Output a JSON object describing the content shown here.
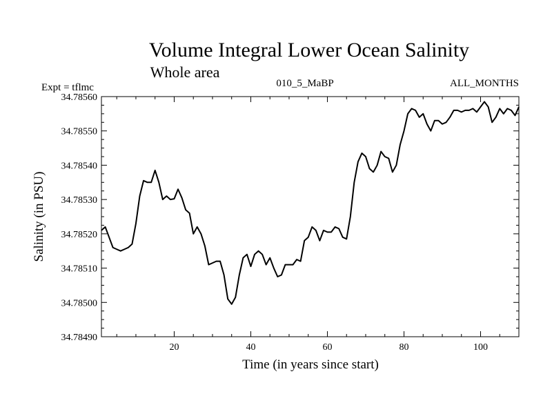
{
  "chart_data": {
    "type": "line",
    "title": "Volume Integral Lower Ocean Salinity",
    "subtitle": "Whole area",
    "left_note": "Expt = tflmc",
    "center_note": "010_5_MaBP",
    "right_note": "ALL_MONTHS",
    "xlabel": "Time (in years since start)",
    "ylabel": "Salinity (in PSU)",
    "xlim": [
      1,
      110
    ],
    "ylim": [
      34.7849,
      34.7856
    ],
    "x_ticks": [
      20,
      40,
      60,
      80,
      100
    ],
    "y_ticks": [
      34.7849,
      34.785,
      34.7851,
      34.7852,
      34.7853,
      34.7854,
      34.7855,
      34.7856
    ],
    "y_tick_labels": [
      "34.78490",
      "34.78500",
      "34.78510",
      "34.78520",
      "34.78530",
      "34.78540",
      "34.78550",
      "34.78560"
    ],
    "x_tick_labels": [
      "20",
      "40",
      "60",
      "80",
      "100"
    ],
    "series": [
      {
        "name": "Salinity",
        "x": [
          1,
          2,
          3,
          4,
          5,
          6,
          7,
          8,
          9,
          10,
          11,
          12,
          13,
          14,
          15,
          16,
          17,
          18,
          19,
          20,
          21,
          22,
          23,
          24,
          25,
          26,
          27,
          28,
          29,
          30,
          31,
          32,
          33,
          34,
          35,
          36,
          37,
          38,
          39,
          40,
          41,
          42,
          43,
          44,
          45,
          46,
          47,
          48,
          49,
          50,
          51,
          52,
          53,
          54,
          55,
          56,
          57,
          58,
          59,
          60,
          61,
          62,
          63,
          64,
          65,
          66,
          67,
          68,
          69,
          70,
          71,
          72,
          73,
          74,
          75,
          76,
          77,
          78,
          79,
          80,
          81,
          82,
          83,
          84,
          85,
          86,
          87,
          88,
          89,
          90,
          91,
          92,
          93,
          94,
          95,
          96,
          97,
          98,
          99,
          100,
          101,
          102,
          103,
          104,
          105,
          106,
          107,
          108,
          109,
          110
        ],
        "values": [
          34.78521,
          34.78522,
          34.78519,
          34.78516,
          34.785155,
          34.78515,
          34.785155,
          34.78516,
          34.78517,
          34.78523,
          34.78531,
          34.785355,
          34.78535,
          34.78535,
          34.785385,
          34.78535,
          34.7853,
          34.78531,
          34.7853,
          34.785302,
          34.78533,
          34.785305,
          34.78527,
          34.78526,
          34.7852,
          34.78522,
          34.7852,
          34.785165,
          34.78511,
          34.785115,
          34.78512,
          34.78512,
          34.78508,
          34.78501,
          34.784995,
          34.785015,
          34.78508,
          34.78513,
          34.78514,
          34.785105,
          34.78514,
          34.78515,
          34.78514,
          34.78511,
          34.78513,
          34.7851,
          34.785075,
          34.78508,
          34.78511,
          34.78511,
          34.78511,
          34.785125,
          34.78512,
          34.78518,
          34.78519,
          34.78522,
          34.78521,
          34.78518,
          34.78521,
          34.785205,
          34.785205,
          34.78522,
          34.785215,
          34.78519,
          34.785185,
          34.78525,
          34.78535,
          34.78541,
          34.785435,
          34.785425,
          34.78539,
          34.78538,
          34.7854,
          34.78544,
          34.785425,
          34.78542,
          34.78538,
          34.7854,
          34.78546,
          34.7855,
          34.78555,
          34.785565,
          34.78556,
          34.78554,
          34.78555,
          34.78552,
          34.7855,
          34.78553,
          34.78553,
          34.78552,
          34.785525,
          34.78554,
          34.78556,
          34.78556,
          34.785555,
          34.78556,
          34.78556,
          34.785565,
          34.785555,
          34.78557,
          34.785585,
          34.78557,
          34.785525,
          34.78554,
          34.785565,
          34.78555,
          34.785565,
          34.78556,
          34.785545,
          34.78557
        ]
      }
    ]
  }
}
